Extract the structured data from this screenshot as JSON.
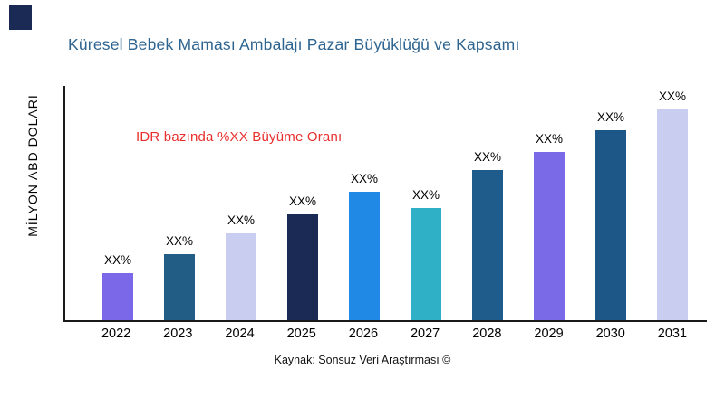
{
  "chart_data": {
    "type": "bar",
    "title": "Küresel Bebek Maması Ambalajı Pazar Büyüklüğü ve Kapsamı",
    "ylabel": "MİLYON ABD DOLARI",
    "xlabel": "",
    "annotation": "IDR bazında %XX Büyüme Oranı",
    "categories": [
      "2022",
      "2023",
      "2024",
      "2025",
      "2026",
      "2027",
      "2028",
      "2029",
      "2030",
      "2031"
    ],
    "values": [
      20,
      28,
      37,
      45,
      55,
      48,
      64,
      72,
      81,
      90
    ],
    "bar_labels": [
      "XX%",
      "XX%",
      "XX%",
      "XX%",
      "XX%",
      "XX%",
      "XX%",
      "XX%",
      "XX%",
      "XX%"
    ],
    "bar_colors": [
      "#7A68E8",
      "#215D84",
      "#C9CDEF",
      "#1B2A55",
      "#2089E5",
      "#2FB0C7",
      "#1F5C8B",
      "#7A6AE8",
      "#1D5787",
      "#C9CDEF"
    ],
    "ylim": [
      0,
      100
    ],
    "grid": false,
    "legend": null
  },
  "colors": {
    "title": "#2E6490",
    "annotation": "#E8302E",
    "logo": "#1B2A55",
    "axis": "#1A1A1A"
  },
  "footer": {
    "source": "Kaynak: Sonsuz Veri Araştırması ©"
  }
}
